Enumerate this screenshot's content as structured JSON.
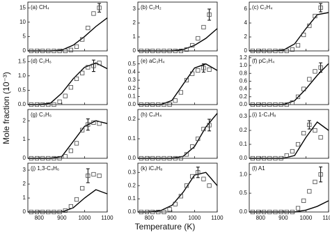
{
  "xlabel": "Temperature (K)",
  "ylabel": "Mole fraction (10⁻³)",
  "xlim": [
    750,
    1100
  ],
  "xticks": [
    800,
    900,
    1000,
    1100
  ],
  "experiment_x": [
    765,
    790,
    815,
    840,
    865,
    890,
    915,
    940,
    965,
    990,
    1015,
    1040,
    1065
  ],
  "model_x": [
    750,
    800,
    850,
    900,
    950,
    1000,
    1050,
    1100
  ],
  "chart_data": [
    {
      "type": "scatter-line",
      "title": "(a) CH₄",
      "ylim": [
        0,
        17
      ],
      "yticks": [
        0,
        5,
        10,
        15
      ],
      "experiment": [
        0,
        0,
        0,
        0,
        0,
        0,
        0,
        0.3,
        1.5,
        4,
        8,
        13,
        15
      ],
      "error": {
        "index": 12,
        "value": 1.5
      },
      "model": [
        0,
        0,
        0,
        0.3,
        2,
        5,
        8.5,
        11.5
      ]
    },
    {
      "type": "scatter-line",
      "title": "(b) C₂H₂",
      "ylim": [
        0,
        3.5
      ],
      "yticks": [
        0,
        1,
        2,
        3
      ],
      "experiment": [
        0,
        0,
        0,
        0,
        0,
        0,
        0,
        0,
        0.1,
        0.4,
        0.9,
        1.7,
        2.6
      ],
      "error": {
        "index": 12,
        "value": 0.4
      },
      "model": [
        0,
        0,
        0,
        0,
        0.1,
        0.4,
        0.9,
        1.6
      ]
    },
    {
      "type": "scatter-line",
      "title": "(c) C₂H₄",
      "ylim": [
        0,
        7
      ],
      "yticks": [
        0,
        2,
        4,
        6
      ],
      "experiment": [
        0,
        0,
        0,
        0,
        0,
        0,
        0,
        0.2,
        0.8,
        2.3,
        3.6,
        5,
        6.2
      ],
      "error": {
        "index": 12,
        "value": 0.6
      },
      "model": [
        0,
        0,
        0,
        0.1,
        1,
        3.2,
        5.2,
        5.5
      ]
    },
    {
      "type": "scatter-line",
      "title": "(d) C₂H₆",
      "ylim": [
        0,
        1.7
      ],
      "yticks": [
        {
          "value": 0,
          "label": "0.0"
        },
        {
          "value": 0.5,
          "label": "0.5"
        },
        {
          "value": 1,
          "label": "1.0"
        },
        {
          "value": 1.5,
          "label": "1.5"
        }
      ],
      "experiment": [
        0,
        0,
        0,
        0,
        0,
        0.1,
        0.3,
        0.6,
        0.9,
        1.1,
        1.3,
        1.35,
        1.45
      ],
      "error": {
        "index": 11,
        "value": 0.2
      },
      "model": [
        0,
        0,
        0.05,
        0.4,
        0.9,
        1.3,
        1.45,
        1.25
      ]
    },
    {
      "type": "scatter-line",
      "title": "(e) aC₃H₄",
      "ylim": [
        0,
        0.6
      ],
      "yticks": [
        {
          "value": 0,
          "label": "0.0"
        },
        {
          "value": 0.1,
          "label": "0.1"
        },
        {
          "value": 0.2,
          "label": "0.2"
        },
        {
          "value": 0.3,
          "label": "0.3"
        },
        {
          "value": 0.4,
          "label": "0.4"
        },
        {
          "value": 0.5,
          "label": "0.5"
        }
      ],
      "experiment": [
        0,
        0,
        0,
        0,
        0,
        0,
        0.05,
        0.15,
        0.3,
        0.38,
        0.42,
        0.45,
        0.43
      ],
      "error": {
        "index": 11,
        "value": 0.05
      },
      "model": [
        0,
        0,
        0,
        0.05,
        0.25,
        0.45,
        0.5,
        0.42
      ]
    },
    {
      "type": "scatter-line",
      "title": "(f) pC₃H₄",
      "ylim": [
        0,
        1.25
      ],
      "yticks": [
        {
          "value": 0,
          "label": "0.0"
        },
        {
          "value": 0.2,
          "label": "0.2"
        },
        {
          "value": 0.4,
          "label": "0.4"
        },
        {
          "value": 0.6,
          "label": "0.6"
        },
        {
          "value": 0.8,
          "label": "0.8"
        },
        {
          "value": 1,
          "label": "1.0"
        },
        {
          "value": 1.2,
          "label": "1.2"
        }
      ],
      "experiment": [
        0,
        0,
        0,
        0,
        0,
        0,
        0,
        0.05,
        0.2,
        0.4,
        0.65,
        0.85,
        0.95
      ],
      "error": {
        "index": 12,
        "value": 0.12
      },
      "model": [
        0,
        0,
        0,
        0,
        0.1,
        0.4,
        0.75,
        1.05
      ]
    },
    {
      "type": "scatter-line",
      "title": "(g) C₃H₆",
      "ylim": [
        0,
        2.6
      ],
      "yticks": [
        0,
        1,
        2
      ],
      "experiment": [
        0,
        0,
        0,
        0,
        0,
        0,
        0.1,
        0.4,
        0.8,
        1.5,
        1.8,
        1.9,
        1.85
      ],
      "error": {
        "index": 10,
        "value": 0.3
      },
      "model": [
        0,
        0,
        0,
        0.1,
        0.9,
        1.7,
        2,
        1.85
      ]
    },
    {
      "type": "scatter-line",
      "title": "(h) C₄H₄",
      "ylim": [
        0,
        0.25
      ],
      "yticks": [
        {
          "value": 0,
          "label": "0.0"
        },
        {
          "value": 0.1,
          "label": "0.1"
        },
        {
          "value": 0.2,
          "label": "0.2"
        }
      ],
      "experiment": [
        0,
        0,
        0,
        0,
        0,
        0,
        0,
        0,
        0.02,
        0.06,
        0.1,
        0.15,
        0.17
      ],
      "error": {
        "index": 12,
        "value": 0.03
      },
      "model": [
        0,
        0,
        0,
        0,
        0.01,
        0.06,
        0.16,
        0.23
      ]
    },
    {
      "type": "scatter-line",
      "title": "(i) 1-C₄H₈",
      "ylim": [
        0,
        0.35
      ],
      "yticks": [
        {
          "value": 0,
          "label": "0.0"
        },
        {
          "value": 0.1,
          "label": "0.1"
        },
        {
          "value": 0.2,
          "label": "0.2"
        },
        {
          "value": 0.3,
          "label": "0.3"
        }
      ],
      "experiment": [
        0,
        0,
        0,
        0,
        0,
        0,
        0.02,
        0.05,
        0.1,
        0.18,
        0.24,
        0.2,
        0.15
      ],
      "error": {
        "index": 10,
        "value": 0.03
      },
      "model": [
        0,
        0,
        0,
        0,
        0.02,
        0.15,
        0.26,
        0.2
      ]
    },
    {
      "type": "scatter-line",
      "title": "(j) 1,3-C₄H₆",
      "ylim": [
        0,
        3.5
      ],
      "yticks": [
        0,
        1,
        2,
        3
      ],
      "experiment": [
        0,
        0,
        0,
        0,
        0,
        0,
        0.1,
        0.4,
        0.9,
        1.7,
        2.6,
        2.7,
        2.6
      ],
      "error": {
        "index": 10,
        "value": 0.5
      },
      "model": [
        0,
        0,
        0,
        0,
        0.3,
        1,
        1.6,
        1.3
      ]
    },
    {
      "type": "scatter-line",
      "title": "(k) iC₄H₈",
      "ylim": [
        0,
        0.37
      ],
      "yticks": [
        {
          "value": 0,
          "label": "0.0"
        },
        {
          "value": 0.1,
          "label": "0.1"
        },
        {
          "value": 0.2,
          "label": "0.2"
        },
        {
          "value": 0.3,
          "label": "0.3"
        }
      ],
      "experiment": [
        0,
        0,
        0,
        0,
        0,
        0.02,
        0.06,
        0.12,
        0.2,
        0.27,
        0.3,
        0.25,
        0.2
      ],
      "error": {
        "index": 10,
        "value": 0.04
      },
      "model": [
        0,
        0,
        0.01,
        0.05,
        0.15,
        0.28,
        0.3,
        0.2
      ]
    },
    {
      "type": "scatter-line",
      "title": "(l) A1",
      "ylim": [
        0,
        1.3
      ],
      "yticks": [
        {
          "value": 0,
          "label": "0.0"
        },
        {
          "value": 0.5,
          "label": "0.5"
        },
        {
          "value": 1,
          "label": "1.0"
        }
      ],
      "experiment": [
        0,
        0,
        0,
        0,
        0,
        0,
        0,
        0,
        0.1,
        0.3,
        0.55,
        0.8,
        1
      ],
      "error": {
        "index": 12,
        "value": 0.2
      },
      "model": [
        0,
        0,
        0,
        0,
        0,
        0.05,
        0.15,
        0.3
      ]
    }
  ]
}
